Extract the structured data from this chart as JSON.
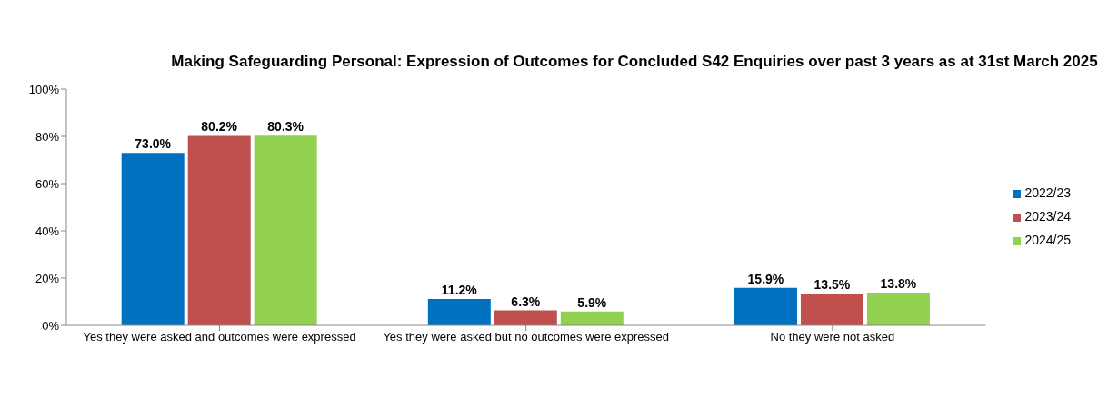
{
  "chart_data": {
    "type": "bar",
    "title": "Making Safeguarding Personal: Expression of Outcomes for Concluded S42 Enquiries over past 3 years as at 31st March 2025",
    "categories": [
      "Yes they were asked and outcomes were expressed",
      "Yes they were asked but no outcomes were expressed",
      "No they were not asked"
    ],
    "series": [
      {
        "name": "2022/23",
        "color": "#0070c0",
        "values": [
          73.0,
          11.2,
          15.9
        ],
        "value_labels": [
          "73.0%",
          "11.2%",
          "15.9%"
        ]
      },
      {
        "name": "2023/24",
        "color": "#c0504d",
        "values": [
          80.2,
          6.3,
          13.5
        ],
        "value_labels": [
          "80.2%",
          "6.3%",
          "13.5%"
        ]
      },
      {
        "name": "2024/25",
        "color": "#92d050",
        "values": [
          80.3,
          5.9,
          13.8
        ],
        "value_labels": [
          "80.3%",
          "5.9%",
          "13.8%"
        ]
      }
    ],
    "ylim": [
      0,
      100
    ],
    "yticks": [
      {
        "value": 0,
        "label": "0%"
      },
      {
        "value": 20,
        "label": "20%"
      },
      {
        "value": 40,
        "label": "40%"
      },
      {
        "value": 60,
        "label": "60%"
      },
      {
        "value": 80,
        "label": "80%"
      },
      {
        "value": 100,
        "label": "100%"
      }
    ],
    "grid": false,
    "legend": "right"
  }
}
